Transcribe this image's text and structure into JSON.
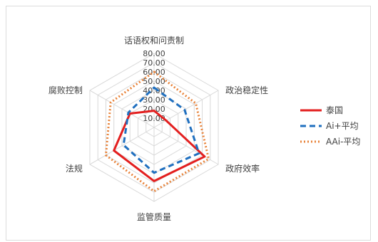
{
  "chart_data": {
    "type": "radar",
    "title": "",
    "categories": [
      "话语权和问责制",
      "政治稳定性",
      "政府效率",
      "监管质量",
      "法规",
      "腐败控制"
    ],
    "tick_labels": [
      "0.00",
      "10.00",
      "20.00",
      "30.00",
      "40.00",
      "50.00",
      "60.00",
      "70.00",
      "80.00"
    ],
    "rlim": [
      0,
      80
    ],
    "grid": true,
    "legend_position": "right",
    "series": [
      {
        "name": "泰国",
        "values": [
          18,
          15,
          63,
          58,
          50,
          30
        ],
        "color": "#e31f1f",
        "style": "solid"
      },
      {
        "name": "Ai+平均",
        "values": [
          43,
          38,
          56,
          49,
          38,
          32
        ],
        "color": "#1f6fbf",
        "style": "dashed"
      },
      {
        "name": "AAi-平均",
        "values": [
          60,
          52,
          68,
          69,
          60,
          54
        ],
        "color": "#e8833a",
        "style": "dotted"
      }
    ]
  }
}
